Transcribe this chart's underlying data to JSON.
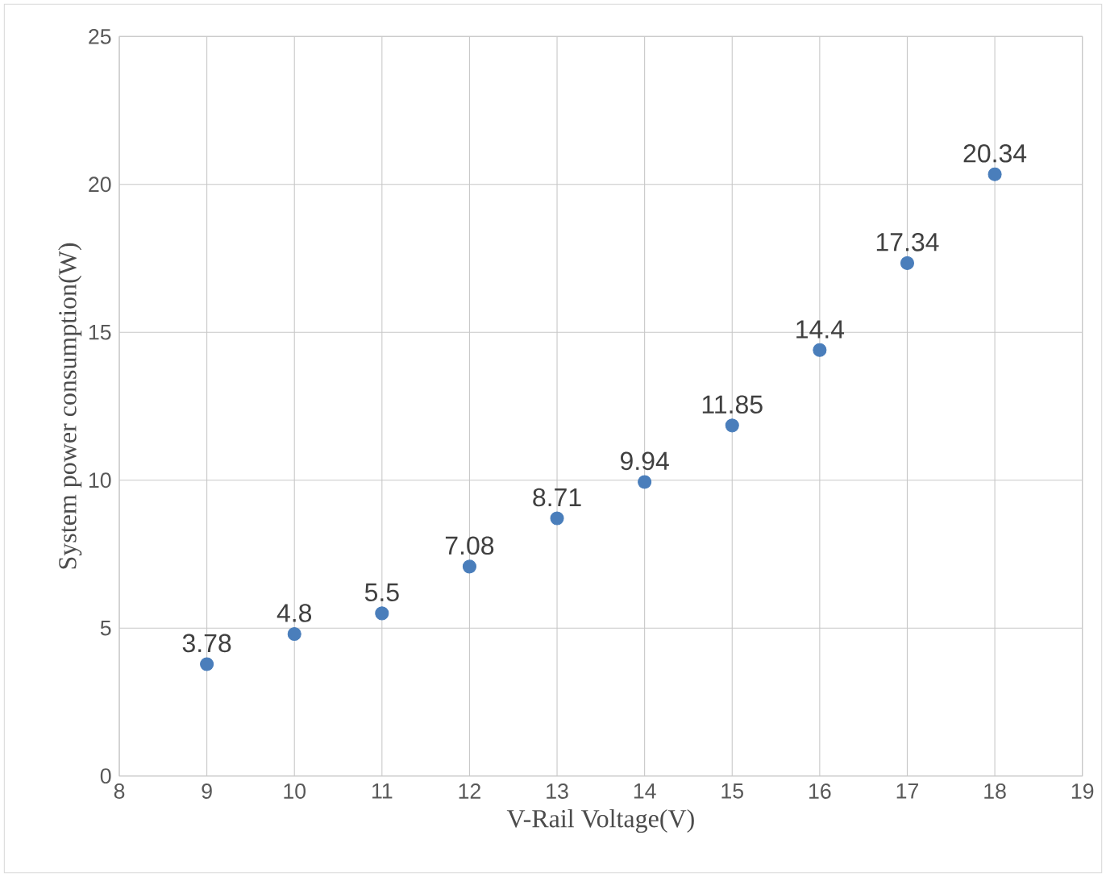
{
  "chart_data": {
    "type": "scatter",
    "xlabel": "V-Rail Voltage(V)",
    "ylabel": "System power consumption(W)",
    "x": [
      9,
      10,
      11,
      12,
      13,
      14,
      15,
      16,
      17,
      18
    ],
    "values": [
      3.78,
      4.8,
      5.5,
      7.08,
      8.71,
      9.94,
      11.85,
      14.4,
      17.34,
      20.34
    ],
    "color": "#4a7ebb",
    "marker": "circle",
    "data_labels": true,
    "grid": true,
    "xlim": [
      8,
      19
    ],
    "xticks": [
      8,
      9,
      10,
      11,
      12,
      13,
      14,
      15,
      16,
      17,
      18,
      19
    ],
    "ylim": [
      0,
      25
    ],
    "yticks": [
      0,
      5,
      10,
      15,
      20,
      25
    ]
  }
}
